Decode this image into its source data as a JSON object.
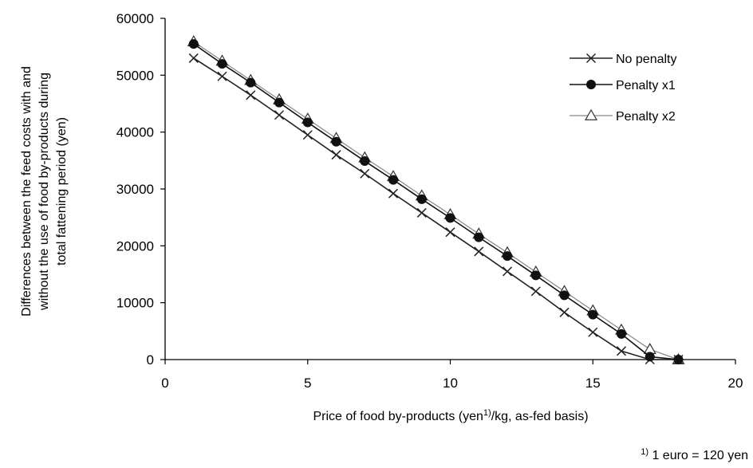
{
  "chart_data": {
    "type": "line",
    "title": "",
    "xlabel_parts": [
      "Price of food by-products (yen",
      "1)",
      "/kg, as-fed basis)"
    ],
    "ylabel_lines": [
      "Differences between the feed costs with and",
      "without the use of food by-products during",
      "total fattening period (yen)"
    ],
    "xlim": [
      0,
      20
    ],
    "ylim": [
      0,
      60000
    ],
    "xticks": [
      0,
      5,
      10,
      15,
      20
    ],
    "yticks": [
      0,
      10000,
      20000,
      30000,
      40000,
      50000,
      60000
    ],
    "grid": false,
    "legend_position": "top-right",
    "x": [
      1,
      2,
      3,
      4,
      5,
      6,
      7,
      8,
      9,
      10,
      11,
      12,
      13,
      14,
      15,
      16,
      17,
      18
    ],
    "series": [
      {
        "name": "No penalty",
        "marker": "x",
        "color": "#222222",
        "values": [
          53000,
          49800,
          46500,
          43000,
          39500,
          36000,
          32700,
          29200,
          25800,
          22400,
          19000,
          15500,
          12000,
          8300,
          4800,
          1500,
          0,
          0
        ]
      },
      {
        "name": "Penalty x1",
        "marker": "filled-circle",
        "color": "#111111",
        "values": [
          55500,
          52000,
          48700,
          45200,
          41700,
          38300,
          34900,
          31600,
          28200,
          24900,
          21500,
          18200,
          14800,
          11300,
          7900,
          4500,
          500,
          0
        ]
      },
      {
        "name": "Penalty x2",
        "marker": "open-triangle",
        "color": "#888888",
        "values": [
          55900,
          52500,
          49100,
          45700,
          42300,
          38900,
          35500,
          32200,
          28800,
          25500,
          22100,
          18800,
          15400,
          12000,
          8600,
          5200,
          1800,
          0
        ]
      }
    ],
    "footnote_parts": [
      "1)",
      " 1 euro = 120 yen"
    ]
  }
}
